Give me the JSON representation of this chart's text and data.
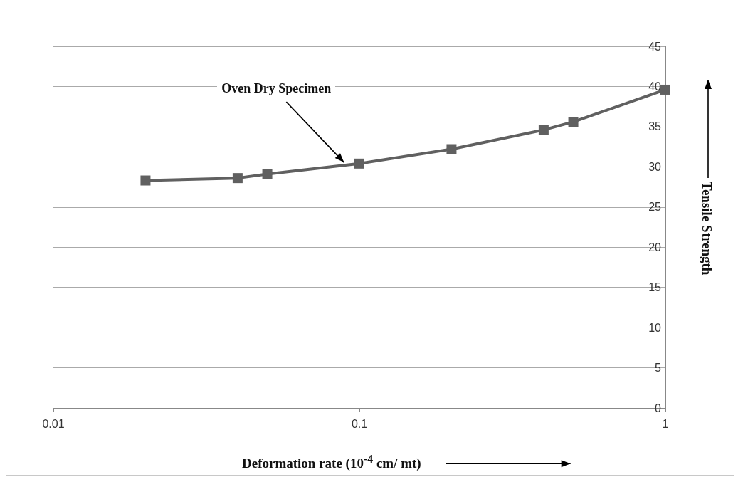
{
  "chart_data": {
    "type": "line",
    "xlabel": "Deformation rate (10$^{-4}$ cm/ mt)",
    "ylabel": "Tensile Strength",
    "x": [
      0.02,
      0.04,
      0.05,
      0.1,
      0.2,
      0.4,
      0.5,
      1
    ],
    "series": [
      {
        "color": "#606060",
        "values": [
          28.3,
          28.6,
          29.1,
          30.4,
          32.2,
          34.6,
          35.6,
          39.6
        ]
      }
    ],
    "log": "x",
    "xlim": [
      0.01,
      1
    ],
    "xticks": [
      0.01,
      0.1,
      1
    ],
    "ylim": [
      0,
      45
    ],
    "yticks": [
      0,
      5,
      10,
      15,
      20,
      25,
      30,
      35,
      40,
      45
    ],
    "grid": "y",
    "marker": "square",
    "line_style": "solid",
    "annotations": [
      {
        "text": "Oven Dry Specimen",
        "x": 0.09,
        "y": 30.2
      }
    ]
  }
}
